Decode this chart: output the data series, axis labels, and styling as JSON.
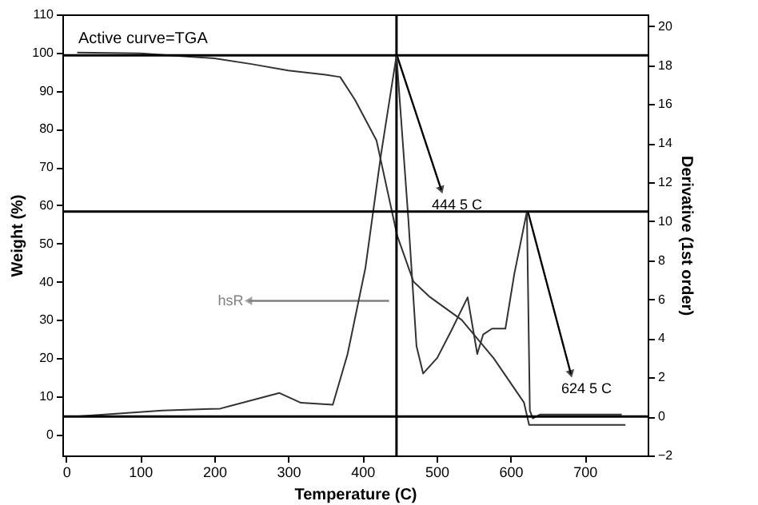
{
  "chart_data": {
    "type": "line",
    "xlabel": "Temperature (C)",
    "ylabel": "Weight (%)",
    "y2label": "Derivative (1st order)",
    "xlim": [
      -5,
      785
    ],
    "xticks": [
      0,
      100,
      200,
      300,
      400,
      500,
      600,
      700
    ],
    "ylim": [
      -5.5,
      110
    ],
    "yticks": [
      0,
      10,
      20,
      30,
      40,
      50,
      60,
      70,
      80,
      90,
      100,
      110
    ],
    "y2lim": [
      -2,
      20.6
    ],
    "y2ticks": [
      -2,
      0,
      2,
      4,
      6,
      8,
      10,
      12,
      14,
      16,
      18,
      20
    ],
    "grid": false,
    "marker": "none",
    "line_style": "solid",
    "series": [
      {
        "color": "#333333",
        "x": [
          15,
          100,
          200,
          250,
          300,
          350,
          370,
          390,
          419,
          447,
          469,
          491,
          534,
          577,
          618,
          625,
          755
        ],
        "values": [
          100,
          99.8,
          98.5,
          97,
          95.3,
          94.2,
          93.6,
          87.6,
          77,
          52,
          40,
          36,
          30,
          20,
          8.4,
          2.5,
          2.5
        ]
      },
      {
        "color": "#333333",
        "axis": "y2",
        "x": [
          13,
          130,
          208,
          288,
          317,
          360,
          380,
          404,
          425,
          446,
          462,
          473,
          482,
          501,
          520,
          542,
          555,
          563,
          575,
          593,
          605,
          622,
          626,
          630,
          640,
          750
        ],
        "values": [
          0,
          0.3,
          0.4,
          1.2,
          0.7,
          0.6,
          3.2,
          7.6,
          13.4,
          18.5,
          10.1,
          3.6,
          2.2,
          3,
          4.4,
          6.1,
          3.2,
          4.2,
          4.5,
          4.5,
          7.3,
          10.5,
          0.3,
          -0.1,
          0.1,
          0.1
        ]
      }
    ],
    "ref_lines": [
      {
        "axis": "y2",
        "value": 18.5,
        "color": "#000000"
      },
      {
        "axis": "y2",
        "value": 10.5,
        "color": "#000000"
      },
      {
        "axis": "y2",
        "value": 0,
        "color": "#000000"
      },
      {
        "axis": "x",
        "value": 446,
        "color": "#000000"
      }
    ],
    "annotations": [
      "Active curve=TGA",
      {
        "text": "444 5 C",
        "x": 446,
        "y": 99.6
      },
      "624 5 C",
      {
        "text": "hsR",
        "x": 436,
        "y": 35
      }
    ]
  }
}
